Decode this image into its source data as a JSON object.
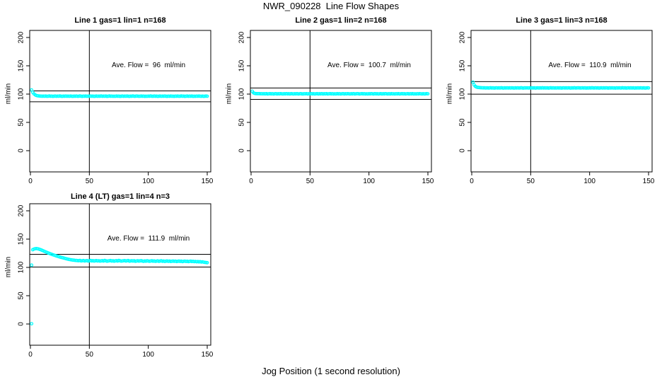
{
  "title": "NWR_090228  Line Flow Shapes",
  "xlabel": "Jog Position (1 second resolution)",
  "colors": {
    "points": "#00ffff",
    "axis": "#000000",
    "background": "#ffffff"
  },
  "chart_data": [
    {
      "type": "scatter",
      "title": "Line 1 gas=1 lin=1 n=168",
      "annotation": "Ave. Flow =  96  ml/min",
      "ave_flow_ml_min": 96,
      "ylabel": "ml/min",
      "xticks": [
        0,
        50,
        100,
        150
      ],
      "yticks": [
        0,
        50,
        100,
        150,
        200
      ],
      "xlim": [
        -1,
        154
      ],
      "ylim": [
        -37.5,
        212.5
      ],
      "vline": 50,
      "hlines": [
        105.6,
        86.4
      ],
      "marker": "open-circle",
      "x_start": 1,
      "values": [
        107.2,
        103.1,
        100.4,
        98.6,
        97.6,
        97.0,
        96.7,
        96.5,
        96.4,
        96.3,
        96.4,
        96.2,
        96.5,
        96.1,
        96.3,
        96.6,
        96.2,
        96.4,
        96.0,
        96.3,
        96.5,
        96.1,
        96.4,
        96.2,
        96.6,
        96.3,
        96.0,
        96.4,
        96.2,
        96.5,
        96.2,
        96.4,
        96.1,
        96.5,
        96.3,
        96.0,
        96.4,
        96.2,
        96.5,
        96.1,
        96.3,
        96.6,
        96.2,
        96.0,
        96.4,
        96.3,
        96.5,
        96.1,
        96.4,
        96.2,
        96.5,
        96.2,
        96.4,
        96.0,
        96.3,
        96.5,
        96.1,
        96.4,
        96.2,
        96.6,
        96.1,
        96.4,
        96.2,
        96.5,
        96.0,
        96.3,
        96.6,
        96.2,
        96.4,
        96.1,
        96.3,
        96.1,
        96.5,
        96.2,
        96.4,
        96.0,
        96.3,
        96.5,
        96.1,
        96.4,
        96.2,
        96.5,
        96.3,
        96.0,
        96.4,
        96.2,
        96.6,
        96.1,
        96.3,
        96.5,
        96.4,
        96.1,
        96.3,
        96.5,
        96.2,
        96.4,
        96.0,
        96.3,
        96.1,
        96.4,
        96.2,
        96.6,
        96.3,
        96.1,
        96.5,
        96.2,
        96.4,
        96.0,
        96.3,
        96.5,
        96.1,
        96.4,
        96.2,
        96.5,
        96.3,
        96.0,
        96.4,
        96.1,
        96.5,
        96.2,
        96.3,
        96.0,
        96.4,
        96.2,
        96.5,
        96.1,
        96.3,
        96.6,
        96.2,
        96.4,
        96.0,
        96.3,
        96.5,
        96.1,
        96.4,
        96.2,
        96.5,
        96.0,
        96.3,
        96.1,
        96.4,
        96.2,
        96.5,
        96.3,
        96.1,
        96.4,
        96.0,
        96.2,
        96.5,
        96.3
      ]
    },
    {
      "type": "scatter",
      "title": "Line 2 gas=1 lin=2 n=168",
      "annotation": "Ave. Flow =  100.7  ml/min",
      "ave_flow_ml_min": 100.7,
      "ylabel": "ml/min",
      "xticks": [
        0,
        50,
        100,
        150
      ],
      "yticks": [
        0,
        50,
        100,
        150,
        200
      ],
      "xlim": [
        -1,
        154
      ],
      "ylim": [
        -37.5,
        212.5
      ],
      "vline": 50,
      "hlines": [
        110.8,
        90.6
      ],
      "marker": "open-circle",
      "x_start": 1,
      "values": [
        105.0,
        102.2,
        101.3,
        100.9,
        100.8,
        100.7,
        100.7,
        100.6,
        100.6,
        100.5,
        100.6,
        100.4,
        100.7,
        100.3,
        100.5,
        100.8,
        100.4,
        100.6,
        100.2,
        100.5,
        100.7,
        100.3,
        100.6,
        100.4,
        100.8,
        100.5,
        100.2,
        100.6,
        100.4,
        100.7,
        100.4,
        100.6,
        100.3,
        100.7,
        100.5,
        100.2,
        100.6,
        100.4,
        100.7,
        100.3,
        100.5,
        100.8,
        100.4,
        100.2,
        100.6,
        100.5,
        100.7,
        100.3,
        100.6,
        100.4,
        100.7,
        100.4,
        100.6,
        100.2,
        100.5,
        100.7,
        100.3,
        100.6,
        100.4,
        100.8,
        100.3,
        100.6,
        100.4,
        100.7,
        100.2,
        100.5,
        100.8,
        100.4,
        100.6,
        100.3,
        100.5,
        100.3,
        100.7,
        100.4,
        100.6,
        100.2,
        100.5,
        100.7,
        100.3,
        100.6,
        100.4,
        100.7,
        100.5,
        100.2,
        100.6,
        100.4,
        100.8,
        100.3,
        100.5,
        100.7,
        100.6,
        100.3,
        100.5,
        100.7,
        100.4,
        100.6,
        100.2,
        100.5,
        100.3,
        100.6,
        100.4,
        100.8,
        100.5,
        100.3,
        100.7,
        100.4,
        100.6,
        100.2,
        100.5,
        100.7,
        100.3,
        100.6,
        100.4,
        100.7,
        100.5,
        100.2,
        100.6,
        100.3,
        100.7,
        100.4,
        100.5,
        100.2,
        100.6,
        100.4,
        100.7,
        100.3,
        100.5,
        100.8,
        100.4,
        100.6,
        100.2,
        100.5,
        100.7,
        100.3,
        100.6,
        100.4,
        100.7,
        100.2,
        100.5,
        100.3,
        100.6,
        100.4,
        100.7,
        100.5,
        100.3,
        100.6,
        100.2,
        100.4,
        100.7,
        100.5
      ]
    },
    {
      "type": "scatter",
      "title": "Line 3 gas=1 lin=3 n=168",
      "annotation": "Ave. Flow =  110.9  ml/min",
      "ave_flow_ml_min": 110.9,
      "ylabel": "ml/min",
      "xticks": [
        0,
        50,
        100,
        150
      ],
      "yticks": [
        0,
        50,
        100,
        150,
        200
      ],
      "xlim": [
        -1,
        154
      ],
      "ylim": [
        -37.5,
        212.5
      ],
      "vline": 50,
      "hlines": [
        122.0,
        99.8
      ],
      "marker": "open-circle",
      "x_start": 1,
      "values": [
        121.0,
        116.2,
        113.7,
        112.5,
        111.9,
        111.6,
        111.4,
        111.2,
        111.1,
        111.0,
        111.0,
        110.8,
        111.1,
        110.7,
        110.9,
        111.2,
        110.8,
        111.0,
        110.6,
        110.9,
        111.1,
        110.7,
        111.0,
        110.8,
        111.2,
        110.9,
        110.6,
        111.0,
        110.8,
        111.1,
        110.8,
        111.0,
        110.7,
        111.1,
        110.9,
        110.6,
        111.0,
        110.8,
        111.1,
        110.7,
        110.9,
        111.2,
        110.8,
        110.6,
        111.0,
        110.9,
        111.1,
        110.7,
        111.0,
        110.8,
        111.1,
        110.8,
        111.0,
        110.6,
        110.9,
        111.1,
        110.7,
        111.0,
        110.8,
        111.2,
        110.7,
        111.0,
        110.8,
        111.1,
        110.6,
        110.9,
        111.2,
        110.8,
        111.0,
        110.7,
        110.9,
        110.7,
        111.1,
        110.8,
        111.0,
        110.6,
        110.9,
        111.1,
        110.7,
        111.0,
        110.8,
        111.1,
        110.9,
        110.6,
        111.0,
        110.8,
        111.2,
        110.7,
        110.9,
        111.1,
        111.0,
        110.7,
        110.9,
        111.1,
        110.8,
        111.0,
        110.6,
        110.9,
        110.7,
        111.0,
        110.8,
        111.2,
        110.9,
        110.7,
        111.1,
        110.8,
        111.0,
        110.6,
        110.9,
        111.1,
        110.7,
        111.0,
        110.8,
        111.1,
        110.9,
        110.6,
        111.0,
        110.7,
        111.1,
        110.8,
        110.9,
        110.6,
        111.0,
        110.8,
        111.1,
        110.7,
        110.9,
        111.2,
        110.8,
        111.0,
        110.6,
        110.9,
        111.1,
        110.7,
        111.0,
        110.8,
        111.1,
        110.6,
        110.9,
        110.7,
        111.0,
        110.8,
        111.1,
        110.9,
        110.7,
        111.0,
        110.6,
        110.8,
        111.1,
        110.9
      ]
    },
    {
      "type": "scatter",
      "title": "Line 4 (LT) gas=1 lin=4 n=3",
      "annotation": "Ave. Flow =  111.9  ml/min",
      "ave_flow_ml_min": 111.9,
      "ylabel": "ml/min",
      "xticks": [
        0,
        50,
        100,
        150
      ],
      "yticks": [
        0,
        50,
        100,
        150,
        200
      ],
      "xlim": [
        -1,
        154
      ],
      "ylim": [
        -37.5,
        212.5
      ],
      "vline": 50,
      "hlines": [
        123.1,
        100.7
      ],
      "marker": "open-circle",
      "extra_points": [
        [
          1,
          0.5
        ],
        [
          1,
          104.0
        ]
      ],
      "x_start": 2,
      "values": [
        131.3,
        132.4,
        133.0,
        133.2,
        133.0,
        132.5,
        131.8,
        131.0,
        130.1,
        129.2,
        128.3,
        127.4,
        126.5,
        125.6,
        124.8,
        124.0,
        123.2,
        122.4,
        121.7,
        121.0,
        120.3,
        119.7,
        119.0,
        118.4,
        117.8,
        117.2,
        116.6,
        116.1,
        115.5,
        115.0,
        114.5,
        114.0,
        113.6,
        113.2,
        112.9,
        112.7,
        112.4,
        112.2,
        112.0,
        111.9,
        112.3,
        111.5,
        111.8,
        112.1,
        111.4,
        111.7,
        112.0,
        111.3,
        111.6,
        112.2,
        111.5,
        111.9,
        111.2,
        111.6,
        112.0,
        111.4,
        111.8,
        111.1,
        111.5,
        111.9,
        111.3,
        112.3,
        111.6,
        111.0,
        111.4,
        111.8,
        112.1,
        111.3,
        111.6,
        111.0,
        111.5,
        111.9,
        111.2,
        112.4,
        111.6,
        111.1,
        111.4,
        111.8,
        112.0,
        111.3,
        111.7,
        112.1,
        111.0,
        111.4,
        111.8,
        111.2,
        111.6,
        110.9,
        111.3,
        111.7,
        111.1,
        111.5,
        111.9,
        111.2,
        110.8,
        111.4,
        111.0,
        111.6,
        111.2,
        110.9,
        111.3,
        111.7,
        111.0,
        111.4,
        110.7,
        111.1,
        111.5,
        110.8,
        111.2,
        111.6,
        110.9,
        111.3,
        110.6,
        111.0,
        111.4,
        110.8,
        111.2,
        110.5,
        110.9,
        111.3,
        110.7,
        111.1,
        110.4,
        110.8,
        111.2,
        110.6,
        111.0,
        110.3,
        110.7,
        111.1,
        110.5,
        110.9,
        110.2,
        110.6,
        111.0,
        110.4,
        110.8,
        110.1,
        110.5,
        109.9,
        110.3,
        109.7,
        110.1,
        109.5,
        109.9,
        109.3,
        108.9,
        108.6,
        108.4
      ]
    }
  ]
}
